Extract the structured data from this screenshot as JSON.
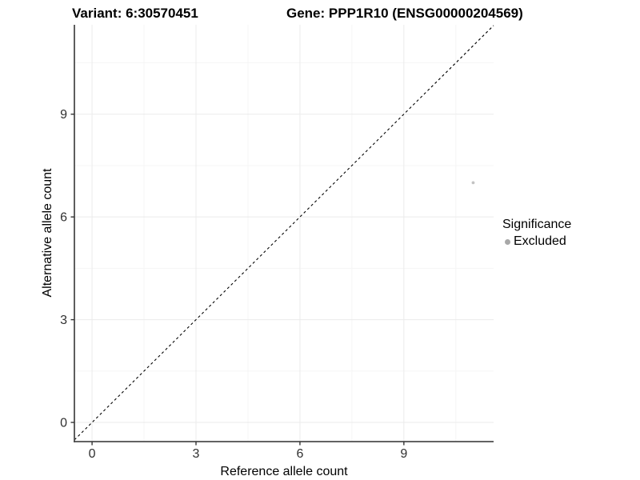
{
  "chart_data": {
    "type": "scatter",
    "titles": {
      "left": "Variant: 6:30570451",
      "right": "Gene: PPP1R10 (ENSG00000204569)"
    },
    "xlabel": "Reference allele count",
    "ylabel": "Alternative allele count",
    "xlim": [
      -0.51,
      11.59
    ],
    "ylim": [
      -0.56,
      11.61
    ],
    "x_ticks": [
      0,
      3,
      6,
      9
    ],
    "y_ticks": [
      0,
      3,
      6,
      9
    ],
    "x_minor_ticks": [
      1.5,
      4.5,
      7.5,
      10.5
    ],
    "y_minor_ticks": [
      1.5,
      4.5,
      7.5,
      10.5
    ],
    "grid": "major+minor",
    "series": [
      {
        "name": "Excluded",
        "points": [
          {
            "x": 11,
            "y": 7
          }
        ],
        "color": "#c3c3c3",
        "marker_radius": 1.9
      }
    ],
    "reference_line": {
      "type": "identity",
      "equation": "y = x",
      "style": "dashed",
      "color": "#000000"
    },
    "legend": {
      "title": "Significance",
      "position": "right",
      "entries": [
        {
          "label": "Excluded",
          "color": "#a8a8a8"
        }
      ]
    },
    "colors": {
      "background": "#ffffff",
      "axis_line": "#4d4d4d",
      "grid_major": "#ebebeb",
      "grid_minor": "#f5f5f5",
      "tick_mark": "#333333",
      "tick_label": "#303030",
      "text": "#000000"
    }
  }
}
